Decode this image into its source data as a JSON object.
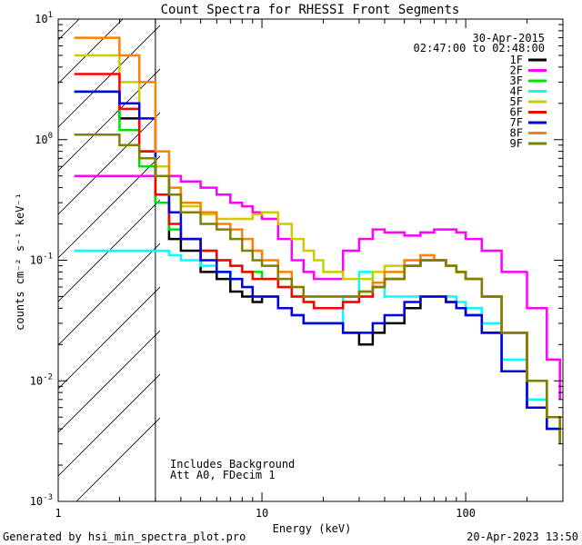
{
  "chart_data": {
    "type": "line",
    "title": "Count Spectra for RHESSI Front Segments",
    "xlabel": "Energy (keV)",
    "ylabel": "counts cm⁻² s⁻¹ keV⁻¹",
    "xscale": "log",
    "yscale": "log",
    "xlim": [
      1,
      300
    ],
    "ylim": [
      0.001,
      10
    ],
    "x_tick_labels": [
      {
        "value": 1,
        "label": "1"
      },
      {
        "value": 10,
        "label": "10"
      },
      {
        "value": 100,
        "label": "100"
      }
    ],
    "y_tick_labels": [
      {
        "value": 10,
        "base": "10",
        "exp": "1"
      },
      {
        "value": 1,
        "base": "10",
        "exp": "0"
      },
      {
        "value": 0.1,
        "base": "10",
        "exp": "-1"
      },
      {
        "value": 0.01,
        "base": "10",
        "exp": "-2"
      },
      {
        "value": 0.001,
        "base": "10",
        "exp": "-3"
      }
    ],
    "date": "30-Apr-2015",
    "time_range": "02:47:00 to 02:48:00",
    "shaded_region": {
      "x_max": 3,
      "style": "diagonal hatch"
    },
    "annotations": [
      "Includes Background",
      "Att A0, FDecim 1"
    ],
    "footer_left": "Generated by hsi_min_spectra_plot.pro",
    "footer_right": "20-Apr-2023 13:50",
    "legend_position": "top-right",
    "series": [
      {
        "name": "1F",
        "color": "#000000",
        "x": [
          1.2,
          1.5,
          2,
          2.5,
          3,
          3.5,
          4,
          5,
          6,
          7,
          8,
          9,
          10,
          12,
          14,
          16,
          18,
          20,
          25,
          30,
          35,
          40,
          50,
          60,
          70,
          80,
          90,
          100,
          120,
          150,
          200,
          250,
          290
        ],
        "y": [
          2.5,
          2.5,
          1.5,
          0.8,
          0.3,
          0.15,
          0.12,
          0.08,
          0.07,
          0.055,
          0.05,
          0.045,
          0.05,
          0.04,
          0.035,
          0.03,
          0.03,
          0.03,
          0.025,
          0.02,
          0.025,
          0.03,
          0.04,
          0.05,
          0.05,
          0.045,
          0.04,
          0.035,
          0.025,
          0.012,
          0.006,
          0.004,
          0.003
        ]
      },
      {
        "name": "2F",
        "color": "#ff00ff",
        "x": [
          1.2,
          1.5,
          2,
          2.5,
          3,
          3.5,
          4,
          5,
          6,
          7,
          8,
          9,
          10,
          12,
          14,
          16,
          18,
          20,
          25,
          30,
          35,
          40,
          50,
          60,
          70,
          80,
          90,
          100,
          120,
          150,
          200,
          250,
          290
        ],
        "y": [
          0.5,
          0.5,
          0.5,
          0.5,
          0.5,
          0.5,
          0.45,
          0.4,
          0.35,
          0.3,
          0.28,
          0.25,
          0.22,
          0.15,
          0.1,
          0.08,
          0.07,
          0.07,
          0.12,
          0.15,
          0.18,
          0.17,
          0.16,
          0.17,
          0.18,
          0.18,
          0.17,
          0.15,
          0.12,
          0.08,
          0.04,
          0.015,
          0.007
        ]
      },
      {
        "name": "3F",
        "color": "#00e000",
        "x": [
          1.2,
          1.5,
          2,
          2.5,
          3,
          3.5,
          4,
          5,
          6,
          7,
          8,
          9,
          10,
          12,
          14,
          16,
          18,
          20,
          25,
          30,
          35,
          40,
          50,
          60,
          70,
          80,
          90,
          100,
          120,
          150,
          200,
          250,
          290
        ],
        "y": [
          2.5,
          2.5,
          1.2,
          0.6,
          0.3,
          0.18,
          0.15,
          0.12,
          0.1,
          0.09,
          0.08,
          0.08,
          0.07,
          0.06,
          0.05,
          0.045,
          0.04,
          0.04,
          0.045,
          0.05,
          0.06,
          0.07,
          0.09,
          0.1,
          0.1,
          0.09,
          0.08,
          0.07,
          0.05,
          0.025,
          0.01,
          0.005,
          0.003
        ]
      },
      {
        "name": "4F",
        "color": "#00ffff",
        "x": [
          1.2,
          1.5,
          2,
          2.5,
          3,
          3.5,
          4,
          5,
          6,
          7,
          8,
          9,
          10,
          12,
          14,
          16,
          18,
          20,
          25,
          30,
          35,
          40,
          50,
          60,
          70,
          80,
          90,
          100,
          120,
          150,
          200,
          250,
          290
        ],
        "y": [
          0.12,
          0.12,
          0.12,
          0.12,
          0.12,
          0.11,
          0.1,
          0.09,
          0.08,
          0.07,
          0.06,
          0.05,
          0.05,
          0.04,
          0.035,
          0.03,
          0.03,
          0.03,
          0.05,
          0.08,
          0.06,
          0.05,
          0.05,
          0.05,
          0.05,
          0.05,
          0.045,
          0.04,
          0.03,
          0.015,
          0.007,
          0.004,
          0.003
        ]
      },
      {
        "name": "5F",
        "color": "#cccc00",
        "x": [
          1.2,
          1.5,
          2,
          2.5,
          3,
          3.5,
          4,
          5,
          6,
          7,
          8,
          9,
          10,
          12,
          14,
          16,
          18,
          20,
          25,
          30,
          35,
          40,
          50,
          60,
          70,
          80,
          90,
          100,
          120,
          150,
          200,
          250,
          290
        ],
        "y": [
          5,
          5,
          3,
          1.5,
          0.6,
          0.35,
          0.28,
          0.24,
          0.22,
          0.22,
          0.22,
          0.24,
          0.25,
          0.2,
          0.15,
          0.12,
          0.1,
          0.08,
          0.07,
          0.07,
          0.08,
          0.09,
          0.1,
          0.11,
          0.1,
          0.09,
          0.08,
          0.07,
          0.05,
          0.025,
          0.01,
          0.005,
          0.003
        ]
      },
      {
        "name": "6F",
        "color": "#ff0000",
        "x": [
          1.2,
          1.5,
          2,
          2.5,
          3,
          3.5,
          4,
          5,
          6,
          7,
          8,
          9,
          10,
          12,
          14,
          16,
          18,
          20,
          25,
          30,
          35,
          40,
          50,
          60,
          70,
          80,
          90,
          100,
          120,
          150,
          200,
          250,
          290
        ],
        "y": [
          3.5,
          3.5,
          1.8,
          0.8,
          0.35,
          0.2,
          0.15,
          0.12,
          0.1,
          0.09,
          0.08,
          0.07,
          0.07,
          0.06,
          0.05,
          0.045,
          0.04,
          0.04,
          0.045,
          0.05,
          0.06,
          0.07,
          0.09,
          0.1,
          0.1,
          0.09,
          0.08,
          0.07,
          0.05,
          0.025,
          0.01,
          0.005,
          0.003
        ]
      },
      {
        "name": "7F",
        "color": "#0000e0",
        "x": [
          1.2,
          1.5,
          2,
          2.5,
          3,
          3.5,
          4,
          5,
          6,
          7,
          8,
          9,
          10,
          12,
          14,
          16,
          18,
          20,
          25,
          30,
          35,
          40,
          50,
          60,
          70,
          80,
          90,
          100,
          120,
          150,
          200,
          250,
          290
        ],
        "y": [
          2.5,
          2.5,
          2,
          1.5,
          0.5,
          0.25,
          0.15,
          0.1,
          0.08,
          0.07,
          0.06,
          0.05,
          0.05,
          0.04,
          0.035,
          0.03,
          0.03,
          0.03,
          0.025,
          0.025,
          0.03,
          0.035,
          0.045,
          0.05,
          0.05,
          0.045,
          0.04,
          0.035,
          0.025,
          0.012,
          0.006,
          0.004,
          0.003
        ]
      },
      {
        "name": "8F",
        "color": "#ff8000",
        "x": [
          1.2,
          1.5,
          2,
          2.5,
          3,
          3.5,
          4,
          5,
          6,
          7,
          8,
          9,
          10,
          12,
          14,
          16,
          18,
          20,
          25,
          30,
          35,
          40,
          50,
          60,
          70,
          80,
          90,
          100,
          120,
          150,
          200,
          250,
          290
        ],
        "y": [
          7,
          7,
          5,
          3,
          0.8,
          0.4,
          0.3,
          0.25,
          0.2,
          0.18,
          0.15,
          0.12,
          0.1,
          0.08,
          0.06,
          0.05,
          0.05,
          0.05,
          0.05,
          0.055,
          0.065,
          0.08,
          0.1,
          0.11,
          0.1,
          0.09,
          0.08,
          0.07,
          0.05,
          0.025,
          0.01,
          0.005,
          0.003
        ]
      },
      {
        "name": "9F",
        "color": "#808000",
        "x": [
          1.2,
          1.5,
          2,
          2.5,
          3,
          3.5,
          4,
          5,
          6,
          7,
          8,
          9,
          10,
          12,
          14,
          16,
          18,
          20,
          25,
          30,
          35,
          40,
          50,
          60,
          70,
          80,
          90,
          100,
          120,
          150,
          200,
          250,
          290
        ],
        "y": [
          1.1,
          1.1,
          0.9,
          0.7,
          0.5,
          0.35,
          0.25,
          0.2,
          0.18,
          0.15,
          0.12,
          0.1,
          0.09,
          0.07,
          0.06,
          0.05,
          0.05,
          0.05,
          0.05,
          0.055,
          0.06,
          0.07,
          0.09,
          0.1,
          0.1,
          0.09,
          0.08,
          0.07,
          0.05,
          0.025,
          0.01,
          0.005,
          0.003
        ]
      }
    ]
  }
}
